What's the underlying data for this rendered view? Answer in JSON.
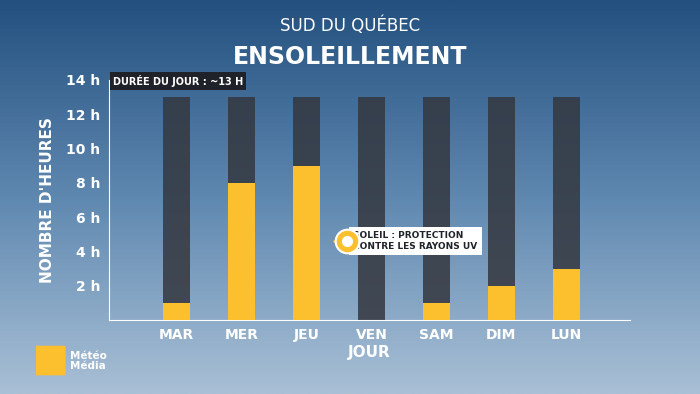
{
  "chart_data": {
    "type": "bar",
    "subtitle": "SUD DU QUÉBEC",
    "title": "ENSOLEILLEMENT",
    "note": "DURÉE DU JOUR : ~13 H",
    "annotation": "SOLEIL : PROTECTION\nCONTRE LES RAYONS UV",
    "source": "Météo\nMédia",
    "x_label": "JOUR",
    "y_label": "NOMBRE D'HEURES",
    "categories": [
      "MAR",
      "MER",
      "JEU",
      "VEN",
      "SAM",
      "DIM",
      "LUN"
    ],
    "values": [
      1,
      8,
      9,
      0,
      1,
      2,
      3
    ],
    "day_length": [
      13,
      13,
      13,
      13,
      13,
      13,
      13
    ],
    "color": "#fcc02e",
    "day_length_color": "#34373f",
    "ylim": [
      0,
      14
    ],
    "yticks": [
      {
        "value": 2,
        "label": "2 h"
      },
      {
        "value": 4,
        "label": "4 h"
      },
      {
        "value": 6,
        "label": "6 h"
      },
      {
        "value": 8,
        "label": "8 h"
      },
      {
        "value": 10,
        "label": "10 h"
      },
      {
        "value": 12,
        "label": "12 h"
      },
      {
        "value": 14,
        "label": "14 h"
      }
    ],
    "grid": false
  }
}
